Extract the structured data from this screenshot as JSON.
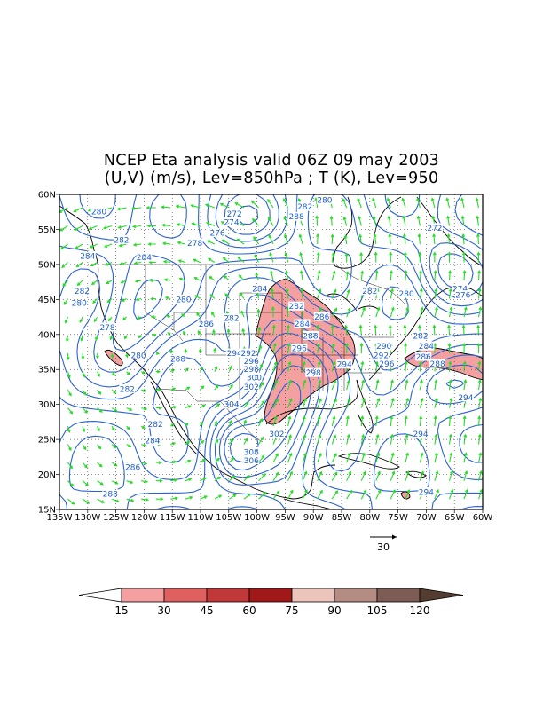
{
  "title": {
    "line1": "NCEP Eta analysis valid 06Z 09 may 2003",
    "line2": "(U,V) (m/s), Lev=850hPa ; T (K), Lev=950"
  },
  "map": {
    "lon_range": [
      -135,
      -60
    ],
    "lat_range": [
      15,
      60
    ],
    "lat_tick_labels": [
      "15N",
      "20N",
      "25N",
      "30N",
      "35N",
      "40N",
      "45N",
      "50N",
      "55N",
      "60N"
    ],
    "lon_tick_labels": [
      "135W",
      "130W",
      "125W",
      "120W",
      "115W",
      "110W",
      "105W",
      "100W",
      "95W",
      "90W",
      "85W",
      "80W",
      "75W",
      "70W",
      "65W",
      "60W"
    ],
    "grid": true,
    "contour_color": "#2a62d4",
    "vector_color": "#22dd22",
    "contour_labels": [
      {
        "t": "280",
        "lon": -128.0,
        "lat": 57.5
      },
      {
        "t": "282",
        "lon": -124.0,
        "lat": 53.5
      },
      {
        "t": "284",
        "lon": -130.0,
        "lat": 51.2
      },
      {
        "t": "284",
        "lon": -120.0,
        "lat": 51.0
      },
      {
        "t": "282",
        "lon": -131.0,
        "lat": 46.2
      },
      {
        "t": "280",
        "lon": -131.5,
        "lat": 44.5
      },
      {
        "t": "278",
        "lon": -126.5,
        "lat": 41.0
      },
      {
        "t": "280",
        "lon": -121.0,
        "lat": 37.0
      },
      {
        "t": "282",
        "lon": -123.0,
        "lat": 32.2
      },
      {
        "t": "288",
        "lon": -114.0,
        "lat": 36.5
      },
      {
        "t": "280",
        "lon": -113.0,
        "lat": 45.0
      },
      {
        "t": "278",
        "lon": -111.0,
        "lat": 53.0
      },
      {
        "t": "276",
        "lon": -107.0,
        "lat": 54.5
      },
      {
        "t": "274",
        "lon": -104.5,
        "lat": 56.0
      },
      {
        "t": "272",
        "lon": -104.0,
        "lat": 57.2
      },
      {
        "t": "286",
        "lon": -109.0,
        "lat": 41.5
      },
      {
        "t": "282",
        "lon": -104.5,
        "lat": 42.3
      },
      {
        "t": "294",
        "lon": -104.0,
        "lat": 37.3
      },
      {
        "t": "292",
        "lon": -101.5,
        "lat": 37.3
      },
      {
        "t": "296",
        "lon": -101.0,
        "lat": 36.2
      },
      {
        "t": "298",
        "lon": -101.0,
        "lat": 35.0
      },
      {
        "t": "300",
        "lon": -100.5,
        "lat": 33.8
      },
      {
        "t": "302",
        "lon": -101.0,
        "lat": 32.5
      },
      {
        "t": "304",
        "lon": -104.5,
        "lat": 30.0
      },
      {
        "t": "282",
        "lon": -118.0,
        "lat": 27.2
      },
      {
        "t": "284",
        "lon": -118.5,
        "lat": 24.8
      },
      {
        "t": "286",
        "lon": -122.0,
        "lat": 21.0
      },
      {
        "t": "288",
        "lon": -126.0,
        "lat": 17.2
      },
      {
        "t": "302",
        "lon": -96.5,
        "lat": 25.8
      },
      {
        "t": "308",
        "lon": -101.0,
        "lat": 23.2
      },
      {
        "t": "306",
        "lon": -101.0,
        "lat": 22.0
      },
      {
        "t": "284",
        "lon": -99.5,
        "lat": 46.5
      },
      {
        "t": "282",
        "lon": -93.0,
        "lat": 44.0
      },
      {
        "t": "284",
        "lon": -92.0,
        "lat": 41.5
      },
      {
        "t": "286",
        "lon": -88.5,
        "lat": 42.5
      },
      {
        "t": "288",
        "lon": -90.5,
        "lat": 39.8
      },
      {
        "t": "296",
        "lon": -92.5,
        "lat": 38.0
      },
      {
        "t": "298",
        "lon": -90.0,
        "lat": 34.5
      },
      {
        "t": "294",
        "lon": -84.5,
        "lat": 35.7
      },
      {
        "t": "290",
        "lon": -77.5,
        "lat": 38.3
      },
      {
        "t": "292",
        "lon": -78.0,
        "lat": 37.0
      },
      {
        "t": "296",
        "lon": -77.0,
        "lat": 35.8
      },
      {
        "t": "282",
        "lon": -91.5,
        "lat": 58.2
      },
      {
        "t": "288",
        "lon": -93.0,
        "lat": 56.8
      },
      {
        "t": "280",
        "lon": -88.0,
        "lat": 59.2
      },
      {
        "t": "282",
        "lon": -80.0,
        "lat": 46.2
      },
      {
        "t": "280",
        "lon": -73.5,
        "lat": 45.8
      },
      {
        "t": "272",
        "lon": -68.5,
        "lat": 55.2
      },
      {
        "t": "274",
        "lon": -64.0,
        "lat": 46.5
      },
      {
        "t": "276",
        "lon": -63.5,
        "lat": 45.6
      },
      {
        "t": "282",
        "lon": -71.0,
        "lat": 39.8
      },
      {
        "t": "284",
        "lon": -70.0,
        "lat": 38.3
      },
      {
        "t": "286",
        "lon": -70.5,
        "lat": 36.8
      },
      {
        "t": "288",
        "lon": -68.0,
        "lat": 35.8
      },
      {
        "t": "294",
        "lon": -63.0,
        "lat": 31.0
      },
      {
        "t": "294",
        "lon": -71.0,
        "lat": 25.8
      },
      {
        "t": "294",
        "lon": -70.0,
        "lat": 17.5
      }
    ],
    "vector_reference": {
      "label": "30",
      "speed_ms": 30
    }
  },
  "colorbar": {
    "labels": [
      "15",
      "30",
      "45",
      "60",
      "75",
      "90",
      "105",
      "120"
    ],
    "colors": [
      "#ffffff",
      "#f4a0a0",
      "#e06060",
      "#c03838",
      "#a01818",
      "#ecc4bc",
      "#b48c84",
      "#7c5c54",
      "#543c30"
    ]
  }
}
